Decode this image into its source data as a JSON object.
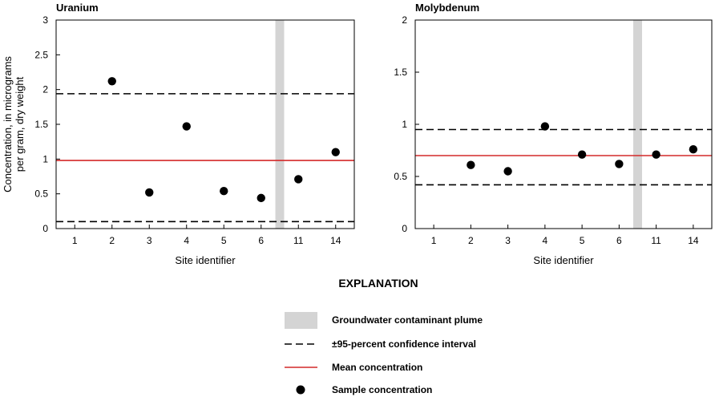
{
  "chart_data": [
    {
      "type": "scatter",
      "title": "Uranium",
      "xlabel": "Site identifier",
      "ylabel_lines": [
        "Concentration, in micrograms",
        "per gram, dry weight"
      ],
      "categories": [
        "1",
        "2",
        "3",
        "4",
        "5",
        "6",
        "11",
        "14"
      ],
      "ylim": [
        0,
        3
      ],
      "yticks": [
        0,
        0.5,
        1,
        1.5,
        2,
        2.5,
        3
      ],
      "ytick_labels": [
        "0",
        "0.5",
        "1",
        "1.5",
        "2",
        "2.5",
        "3"
      ],
      "values": [
        null,
        2.12,
        0.52,
        1.47,
        0.54,
        0.44,
        0.71,
        1.1
      ],
      "mean": 0.98,
      "ci": [
        0.1,
        1.94
      ],
      "plume_after_category": "6",
      "grid": false
    },
    {
      "type": "scatter",
      "title": "Molybdenum",
      "xlabel": "Site identifier",
      "ylabel_lines": [],
      "categories": [
        "1",
        "2",
        "3",
        "4",
        "5",
        "6",
        "11",
        "14"
      ],
      "ylim": [
        0,
        2
      ],
      "yticks": [
        0,
        0.5,
        1,
        1.5,
        2
      ],
      "ytick_labels": [
        "0",
        "0.5",
        "1",
        "1.5",
        "2"
      ],
      "values": [
        null,
        0.61,
        0.55,
        0.98,
        0.71,
        0.62,
        0.71,
        0.76
      ],
      "mean": 0.7,
      "ci": [
        0.42,
        0.95
      ],
      "plume_after_category": "6",
      "grid": false
    }
  ],
  "explanation": {
    "heading": "EXPLANATION",
    "items": [
      {
        "key": "plume",
        "label": "Groundwater contaminant plume"
      },
      {
        "key": "ci",
        "label": "±95-percent confidence interval"
      },
      {
        "key": "mean",
        "label": "Mean concentration"
      },
      {
        "key": "sample",
        "label": "Sample concentration"
      }
    ]
  },
  "colors": {
    "plume": "#d4d4d4",
    "mean": "#d42a2a",
    "ci": "#000000",
    "point": "#000000",
    "axis": "#000000"
  }
}
